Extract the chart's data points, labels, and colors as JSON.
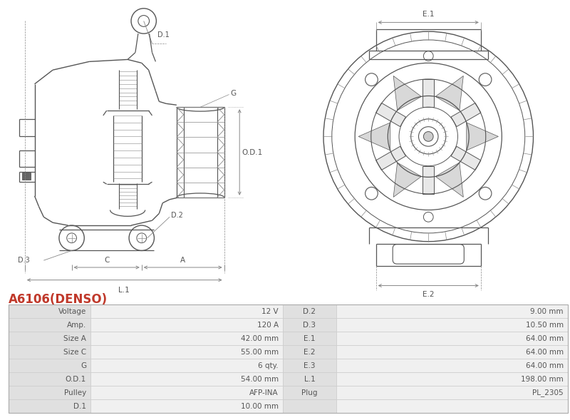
{
  "title": "A6106(DENSO)",
  "title_color": "#c0392b",
  "background_color": "#ffffff",
  "table_rows": [
    [
      "Voltage",
      "12 V",
      "D.2",
      "9.00 mm"
    ],
    [
      "Amp.",
      "120 A",
      "D.3",
      "10.50 mm"
    ],
    [
      "Size A",
      "42.00 mm",
      "E.1",
      "64.00 mm"
    ],
    [
      "Size C",
      "55.00 mm",
      "E.2",
      "64.00 mm"
    ],
    [
      "G",
      "6 qty.",
      "E.3",
      "64.00 mm"
    ],
    [
      "O.D.1",
      "54.00 mm",
      "L.1",
      "198.00 mm"
    ],
    [
      "Pulley",
      "AFP-INA",
      "Plug",
      "PL_2305"
    ],
    [
      "D.1",
      "10.00 mm",
      "",
      ""
    ]
  ],
  "lc": "#555555",
  "lc2": "#888888",
  "border_color": "#cccccc",
  "text_color": "#555555",
  "header_bg": "#e0e0e0",
  "row_bg_alt": "#f0f0f0"
}
